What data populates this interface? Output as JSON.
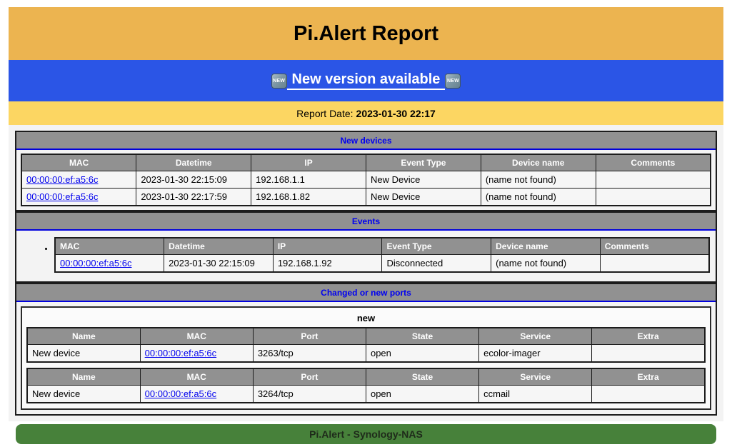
{
  "header": {
    "title": "Pi.Alert Report"
  },
  "version_banner": {
    "link_label": "New version available",
    "badge_label": "NEW"
  },
  "report_date": {
    "label": "Report Date:",
    "value": "2023-01-30 22:17"
  },
  "sections": {
    "new_devices": {
      "title": "New devices",
      "columns": [
        "MAC",
        "Datetime",
        "IP",
        "Event Type",
        "Device name",
        "Comments"
      ],
      "rows": [
        {
          "mac": "00:00:00:ef:a5:6c",
          "datetime": "2023-01-30 22:15:09",
          "ip": "192.168.1.1",
          "event_type": "New Device",
          "device_name": "(name not found)",
          "comments": ""
        },
        {
          "mac": "00:00:00:ef:a5:6c",
          "datetime": "2023-01-30 22:17:59",
          "ip": "192.168.1.82",
          "event_type": "New Device",
          "device_name": "(name not found)",
          "comments": ""
        }
      ]
    },
    "events": {
      "title": "Events",
      "columns": [
        "MAC",
        "Datetime",
        "IP",
        "Event Type",
        "Device name",
        "Comments"
      ],
      "rows": [
        {
          "mac": "00:00:00:ef:a5:6c",
          "datetime": "2023-01-30 22:15:09",
          "ip": "192.168.1.92",
          "event_type": "Disconnected",
          "device_name": "(name not found)",
          "comments": ""
        }
      ]
    },
    "ports": {
      "title": "Changed or new ports",
      "group_label": "new",
      "columns": [
        "Name",
        "MAC",
        "Port",
        "State",
        "Service",
        "Extra"
      ],
      "tables": [
        {
          "rows": [
            {
              "name": "New device",
              "mac": "00:00:00:ef:a5:6c",
              "port": "3263/tcp",
              "state": "open",
              "service": "ecolor-imager",
              "extra": ""
            }
          ]
        },
        {
          "rows": [
            {
              "name": "New device",
              "mac": "00:00:00:ef:a5:6c",
              "port": "3264/tcp",
              "state": "open",
              "service": "ccmail",
              "extra": ""
            }
          ]
        }
      ]
    }
  },
  "footer": {
    "text": "Pi.Alert - Synology-NAS"
  },
  "colors": {
    "header_orange": "#ecb450",
    "banner_blue": "#2b55e6",
    "date_yellow": "#fcd662",
    "bar_gray": "#919191",
    "section_title_blue": "#0000f0",
    "link_blue": "#0000ee",
    "footer_green": "#47813a",
    "border_dark": "#1c1c1c"
  }
}
